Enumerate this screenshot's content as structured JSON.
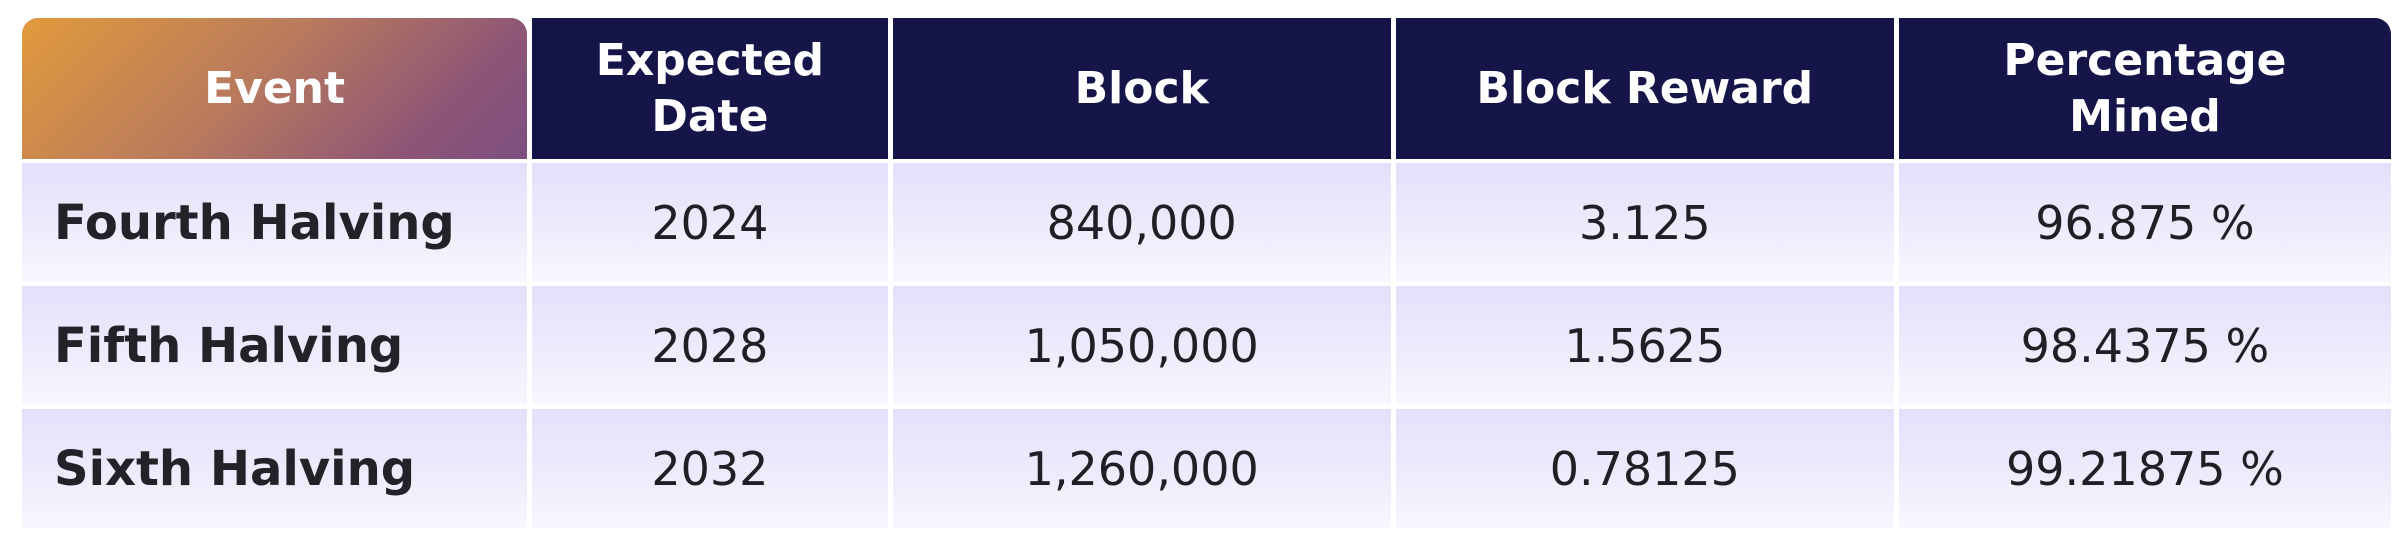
{
  "table": {
    "headers": [
      {
        "line1": "Event",
        "line2": ""
      },
      {
        "line1": "Expected",
        "line2": "Date"
      },
      {
        "line1": "Block",
        "line2": ""
      },
      {
        "line1": "Block Reward",
        "line2": ""
      },
      {
        "line1": "Percentage",
        "line2": "Mined"
      }
    ],
    "rows": [
      {
        "event": "Fourth Halving",
        "date": "2024",
        "block": "840,000",
        "reward": "3.125",
        "mined": "96.875 %"
      },
      {
        "event": "Fifth Halving",
        "date": "2028",
        "block": "1,050,000",
        "reward": "1.5625",
        "mined": "98.4375 %"
      },
      {
        "event": "Sixth Halving",
        "date": "2032",
        "block": "1,260,000",
        "reward": "0.78125",
        "mined": "99.21875 %"
      }
    ]
  },
  "colors": {
    "header_bg": "#16154a",
    "event_header_gradient": [
      "#e19a3c",
      "#7d4f80"
    ],
    "row_bg_top": "#e4e0fb",
    "row_bg_bottom": "#f8f7fe",
    "text": "#1f1f26"
  }
}
